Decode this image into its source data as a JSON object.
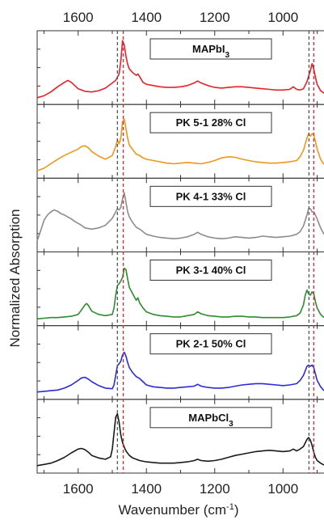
{
  "chart_data": {
    "type": "line",
    "title": "",
    "xlabel": "Wavenumber (cm",
    "xlabel_sup": "-1",
    "xlabel_tail": ")",
    "ylabel": "Normalized Absorption",
    "xlim": [
      1720,
      880
    ],
    "x_reversed": true,
    "x_ticks": [
      1600,
      1400,
      1200,
      1000
    ],
    "x_tick_labels": [
      "1600",
      "1400",
      "1200",
      "1000"
    ],
    "grid": false,
    "stacked_panels": true,
    "reference_lines": [
      {
        "x": 1485,
        "color": "#555555",
        "style": "dashed"
      },
      {
        "x": 1468,
        "color": "#e8202a",
        "style": "dashed"
      },
      {
        "x": 924,
        "color": "#555555",
        "style": "dashed"
      },
      {
        "x": 910,
        "color": "#e8202a",
        "style": "dashed"
      }
    ],
    "series": [
      {
        "label_main": "MAPbI",
        "label_sub": "3",
        "label_tail": "",
        "color": "#e8202a",
        "x": [
          1720,
          1700,
          1680,
          1660,
          1640,
          1630,
          1620,
          1600,
          1580,
          1560,
          1540,
          1520,
          1500,
          1490,
          1480,
          1475,
          1470,
          1465,
          1460,
          1455,
          1450,
          1440,
          1430,
          1425,
          1420,
          1410,
          1400,
          1380,
          1360,
          1340,
          1320,
          1300,
          1280,
          1260,
          1250,
          1240,
          1220,
          1200,
          1180,
          1160,
          1140,
          1120,
          1100,
          1080,
          1060,
          1040,
          1020,
          1000,
          980,
          970,
          960,
          950,
          940,
          930,
          920,
          915,
          910,
          905,
          900,
          890,
          880
        ],
        "y": [
          0.03,
          0.06,
          0.12,
          0.2,
          0.27,
          0.3,
          0.27,
          0.17,
          0.13,
          0.12,
          0.14,
          0.18,
          0.26,
          0.3,
          0.4,
          0.6,
          0.92,
          0.85,
          0.68,
          0.55,
          0.48,
          0.42,
          0.38,
          0.4,
          0.36,
          0.27,
          0.24,
          0.22,
          0.2,
          0.19,
          0.19,
          0.2,
          0.22,
          0.26,
          0.29,
          0.26,
          0.22,
          0.19,
          0.18,
          0.19,
          0.2,
          0.2,
          0.19,
          0.18,
          0.17,
          0.16,
          0.15,
          0.15,
          0.16,
          0.2,
          0.16,
          0.15,
          0.17,
          0.28,
          0.45,
          0.56,
          0.48,
          0.35,
          0.24,
          0.14,
          0.1
        ]
      },
      {
        "label_main": "PK 5-1 28% Cl",
        "label_sub": "",
        "label_tail": "",
        "color": "#f0961e",
        "x": [
          1720,
          1700,
          1680,
          1660,
          1640,
          1620,
          1600,
          1590,
          1580,
          1570,
          1560,
          1540,
          1520,
          1500,
          1490,
          1485,
          1480,
          1475,
          1470,
          1465,
          1460,
          1455,
          1450,
          1440,
          1430,
          1420,
          1410,
          1400,
          1380,
          1360,
          1340,
          1320,
          1300,
          1280,
          1260,
          1240,
          1220,
          1200,
          1180,
          1160,
          1140,
          1120,
          1100,
          1080,
          1060,
          1040,
          1020,
          1000,
          980,
          960,
          950,
          940,
          930,
          925,
          920,
          915,
          910,
          905,
          900,
          890,
          880
        ],
        "y": [
          0.04,
          0.08,
          0.15,
          0.22,
          0.28,
          0.33,
          0.38,
          0.42,
          0.43,
          0.4,
          0.34,
          0.27,
          0.22,
          0.28,
          0.42,
          0.52,
          0.46,
          0.55,
          0.8,
          0.85,
          0.7,
          0.55,
          0.44,
          0.37,
          0.3,
          0.28,
          0.24,
          0.22,
          0.2,
          0.18,
          0.16,
          0.15,
          0.16,
          0.17,
          0.16,
          0.15,
          0.17,
          0.2,
          0.24,
          0.26,
          0.25,
          0.22,
          0.2,
          0.18,
          0.17,
          0.16,
          0.16,
          0.17,
          0.18,
          0.2,
          0.26,
          0.36,
          0.55,
          0.62,
          0.58,
          0.62,
          0.6,
          0.5,
          0.38,
          0.22,
          0.14
        ]
      },
      {
        "label_main": "PK 4-1 33% Cl",
        "label_sub": "",
        "label_tail": "",
        "color": "#8c8c8c",
        "x": [
          1720,
          1710,
          1700,
          1690,
          1680,
          1670,
          1660,
          1650,
          1640,
          1630,
          1620,
          1610,
          1600,
          1590,
          1580,
          1560,
          1540,
          1520,
          1500,
          1490,
          1485,
          1480,
          1475,
          1470,
          1465,
          1460,
          1455,
          1450,
          1440,
          1430,
          1420,
          1410,
          1400,
          1380,
          1360,
          1340,
          1320,
          1300,
          1280,
          1260,
          1250,
          1240,
          1220,
          1200,
          1180,
          1160,
          1140,
          1120,
          1100,
          1080,
          1060,
          1040,
          1020,
          1000,
          980,
          960,
          950,
          940,
          930,
          925,
          920,
          915,
          910,
          905,
          900,
          890,
          880
        ],
        "y": [
          0.1,
          0.25,
          0.42,
          0.5,
          0.55,
          0.58,
          0.56,
          0.52,
          0.5,
          0.47,
          0.44,
          0.4,
          0.37,
          0.34,
          0.3,
          0.28,
          0.3,
          0.34,
          0.45,
          0.55,
          0.6,
          0.58,
          0.62,
          0.75,
          0.85,
          0.7,
          0.55,
          0.47,
          0.38,
          0.31,
          0.28,
          0.24,
          0.2,
          0.17,
          0.15,
          0.14,
          0.13,
          0.14,
          0.16,
          0.2,
          0.23,
          0.2,
          0.16,
          0.14,
          0.13,
          0.14,
          0.16,
          0.15,
          0.14,
          0.15,
          0.17,
          0.16,
          0.15,
          0.16,
          0.17,
          0.2,
          0.24,
          0.33,
          0.5,
          0.6,
          0.6,
          0.55,
          0.55,
          0.5,
          0.44,
          0.3,
          0.2
        ]
      },
      {
        "label_main": "PK 3-1 40% Cl",
        "label_sub": "",
        "label_tail": "",
        "color": "#2e8c2e",
        "x": [
          1720,
          1700,
          1680,
          1660,
          1640,
          1620,
          1600,
          1590,
          1580,
          1575,
          1570,
          1560,
          1540,
          1520,
          1500,
          1495,
          1490,
          1485,
          1480,
          1475,
          1470,
          1465,
          1460,
          1455,
          1450,
          1440,
          1430,
          1425,
          1420,
          1410,
          1400,
          1380,
          1360,
          1340,
          1320,
          1300,
          1280,
          1260,
          1250,
          1240,
          1220,
          1200,
          1180,
          1160,
          1140,
          1120,
          1100,
          1080,
          1060,
          1040,
          1020,
          1000,
          980,
          960,
          950,
          940,
          935,
          930,
          925,
          920,
          915,
          910,
          905,
          900,
          890,
          880
        ],
        "y": [
          0.03,
          0.04,
          0.05,
          0.05,
          0.06,
          0.07,
          0.1,
          0.17,
          0.25,
          0.27,
          0.24,
          0.15,
          0.1,
          0.08,
          0.1,
          0.2,
          0.4,
          0.55,
          0.58,
          0.62,
          0.68,
          0.82,
          0.8,
          0.65,
          0.52,
          0.42,
          0.32,
          0.36,
          0.28,
          0.2,
          0.14,
          0.1,
          0.08,
          0.07,
          0.06,
          0.06,
          0.08,
          0.1,
          0.14,
          0.11,
          0.08,
          0.07,
          0.06,
          0.06,
          0.07,
          0.07,
          0.06,
          0.06,
          0.05,
          0.05,
          0.05,
          0.05,
          0.06,
          0.08,
          0.12,
          0.25,
          0.4,
          0.48,
          0.42,
          0.4,
          0.45,
          0.42,
          0.3,
          0.2,
          0.1,
          0.05
        ]
      },
      {
        "label_main": "PK 2-1 50% Cl",
        "label_sub": "",
        "label_tail": "",
        "color": "#2b2bd9",
        "x": [
          1720,
          1700,
          1680,
          1660,
          1640,
          1620,
          1600,
          1590,
          1580,
          1570,
          1560,
          1540,
          1520,
          1500,
          1495,
          1490,
          1485,
          1480,
          1475,
          1470,
          1465,
          1460,
          1455,
          1450,
          1440,
          1430,
          1420,
          1410,
          1400,
          1380,
          1360,
          1340,
          1320,
          1300,
          1280,
          1260,
          1250,
          1240,
          1220,
          1200,
          1180,
          1160,
          1140,
          1120,
          1100,
          1080,
          1060,
          1040,
          1020,
          1000,
          980,
          960,
          950,
          940,
          930,
          925,
          920,
          915,
          910,
          905,
          900,
          890,
          880
        ],
        "y": [
          0.04,
          0.05,
          0.06,
          0.07,
          0.1,
          0.15,
          0.22,
          0.26,
          0.27,
          0.24,
          0.2,
          0.14,
          0.1,
          0.09,
          0.15,
          0.3,
          0.45,
          0.48,
          0.52,
          0.62,
          0.66,
          0.6,
          0.5,
          0.42,
          0.34,
          0.28,
          0.25,
          0.2,
          0.15,
          0.12,
          0.11,
          0.1,
          0.1,
          0.11,
          0.12,
          0.13,
          0.16,
          0.13,
          0.11,
          0.1,
          0.1,
          0.11,
          0.13,
          0.15,
          0.16,
          0.17,
          0.17,
          0.16,
          0.15,
          0.14,
          0.15,
          0.17,
          0.22,
          0.3,
          0.44,
          0.46,
          0.44,
          0.46,
          0.42,
          0.32,
          0.22,
          0.12,
          0.06
        ]
      },
      {
        "label_main": "MAPbCl",
        "label_sub": "3",
        "label_tail": "",
        "color": "#1a1a1a",
        "x": [
          1720,
          1700,
          1680,
          1660,
          1640,
          1620,
          1600,
          1590,
          1580,
          1570,
          1560,
          1540,
          1520,
          1505,
          1500,
          1495,
          1490,
          1485,
          1480,
          1475,
          1470,
          1465,
          1460,
          1450,
          1440,
          1430,
          1420,
          1400,
          1380,
          1360,
          1340,
          1320,
          1300,
          1280,
          1260,
          1250,
          1240,
          1220,
          1200,
          1180,
          1160,
          1140,
          1120,
          1100,
          1080,
          1060,
          1040,
          1020,
          1000,
          980,
          970,
          960,
          950,
          940,
          930,
          925,
          920,
          915,
          910,
          905,
          900,
          890,
          880
        ],
        "y": [
          0.04,
          0.06,
          0.08,
          0.12,
          0.17,
          0.24,
          0.3,
          0.31,
          0.29,
          0.25,
          0.2,
          0.16,
          0.14,
          0.18,
          0.3,
          0.55,
          0.8,
          0.85,
          0.72,
          0.52,
          0.4,
          0.33,
          0.27,
          0.2,
          0.16,
          0.14,
          0.12,
          0.1,
          0.09,
          0.08,
          0.08,
          0.08,
          0.09,
          0.1,
          0.12,
          0.14,
          0.12,
          0.11,
          0.12,
          0.14,
          0.17,
          0.2,
          0.22,
          0.24,
          0.26,
          0.27,
          0.28,
          0.27,
          0.26,
          0.27,
          0.3,
          0.27,
          0.3,
          0.34,
          0.45,
          0.48,
          0.44,
          0.36,
          0.25,
          0.17,
          0.12,
          0.08,
          0.05
        ]
      }
    ]
  }
}
